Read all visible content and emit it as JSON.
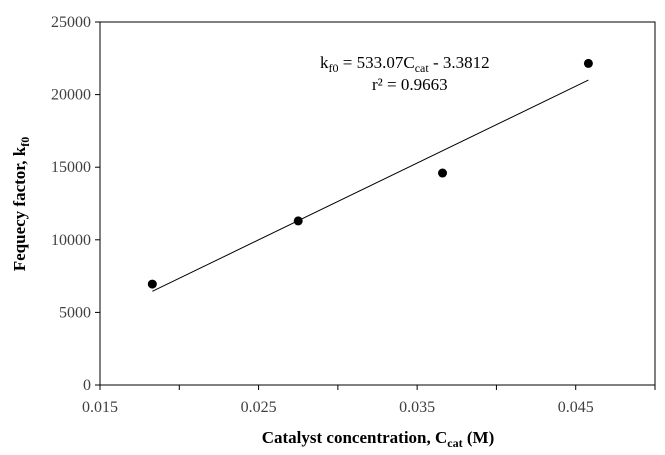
{
  "chart_data": {
    "type": "scatter",
    "xlabel": {
      "main": "Catalyst concentration, C",
      "sub": "cat",
      "tail": " (M)"
    },
    "ylabel": {
      "main": "Fequecy factor, k",
      "sub": "f0"
    },
    "xlim": [
      0.015,
      0.05
    ],
    "ylim": [
      0,
      25000
    ],
    "x_ticks": [
      0.015,
      0.025,
      0.035,
      0.045
    ],
    "x_tick_labels": [
      "0.015",
      "0.025",
      "0.035",
      "0.045"
    ],
    "y_ticks": [
      0,
      5000,
      10000,
      15000,
      20000,
      25000
    ],
    "y_tick_labels": [
      "0",
      "5000",
      "10000",
      "15000",
      "20000",
      "25000"
    ],
    "grid": false,
    "legend": "none",
    "series": [
      {
        "x": [
          0.0183,
          0.0275,
          0.0366,
          0.0458
        ],
        "y": [
          6950,
          11300,
          14600,
          22150
        ]
      }
    ],
    "trendline": {
      "x_range": [
        0.0183,
        0.0458
      ],
      "y_range": [
        6450,
        21000
      ],
      "equation": {
        "a": "k",
        "a_sub": "f0",
        "b": " = 533.07C",
        "b_sub": "cat",
        "c": " - 3.3812"
      },
      "r2": "r² = 0.9663"
    },
    "colors": {
      "marker": "#000000",
      "line": "#000000",
      "axis": "#000000"
    }
  }
}
